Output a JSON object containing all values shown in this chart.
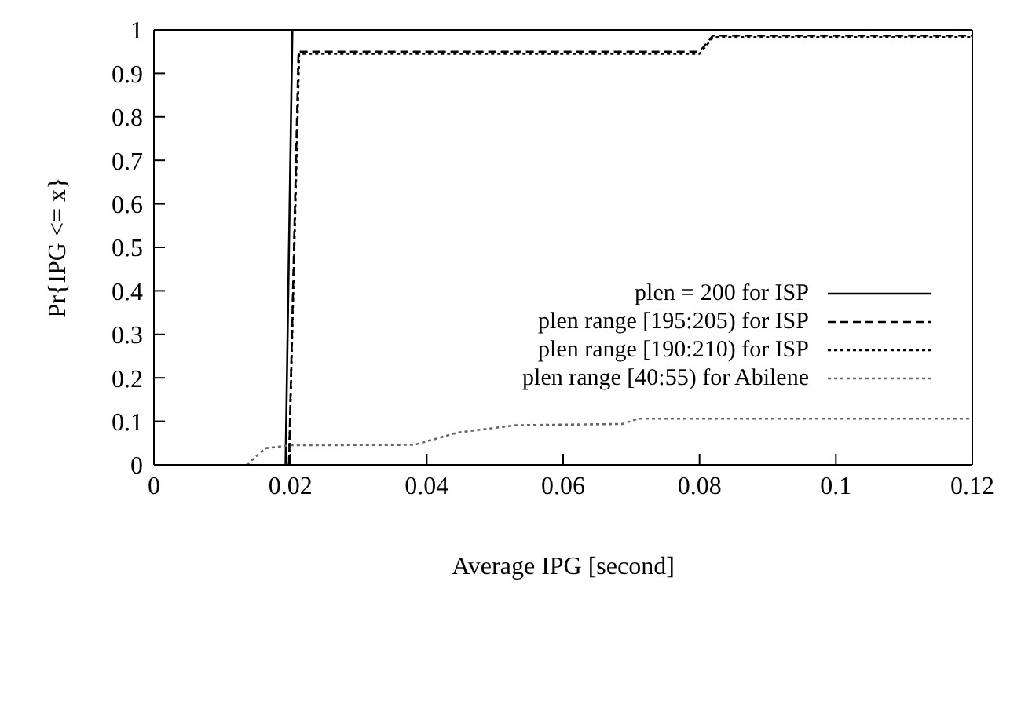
{
  "chart_data": {
    "type": "line",
    "xlabel": "Average IPG [second]",
    "ylabel": "Pr{IPG <= x}",
    "xlim": [
      0,
      0.12
    ],
    "ylim": [
      0,
      1
    ],
    "xticks": [
      0,
      0.02,
      0.04,
      0.06,
      0.08,
      0.1,
      0.12
    ],
    "yticks": [
      0,
      0.1,
      0.2,
      0.3,
      0.4,
      0.5,
      0.6,
      0.7,
      0.8,
      0.9,
      1
    ],
    "legend": "right",
    "marker": "none",
    "series": [
      {
        "name": "plen = 200 for ISP",
        "color": "#000000",
        "line_style": "solid",
        "x": [
          0.0193,
          0.0203,
          0.12
        ],
        "values": [
          0,
          1,
          1
        ]
      },
      {
        "name": "plen range [195:205) for ISP",
        "color": "#000000",
        "line_style": "dashed",
        "x": [
          0.0198,
          0.0212,
          0.08,
          0.082,
          0.12
        ],
        "values": [
          0,
          0.95,
          0.95,
          0.987,
          0.987
        ]
      },
      {
        "name": "plen range [190:210) for ISP",
        "color": "#000000",
        "line_style": "dotted",
        "x": [
          0.0198,
          0.0213,
          0.08,
          0.082,
          0.12
        ],
        "values": [
          0,
          0.945,
          0.945,
          0.983,
          0.983
        ]
      },
      {
        "name": "plen range [40:55) for Abilene",
        "color": "#666666",
        "line_style": "dotted",
        "x": [
          0.0136,
          0.0163,
          0.02,
          0.0382,
          0.0445,
          0.053,
          0.0687,
          0.071,
          0.12
        ],
        "values": [
          0,
          0.038,
          0.045,
          0.046,
          0.074,
          0.091,
          0.094,
          0.106,
          0.106
        ]
      }
    ]
  }
}
